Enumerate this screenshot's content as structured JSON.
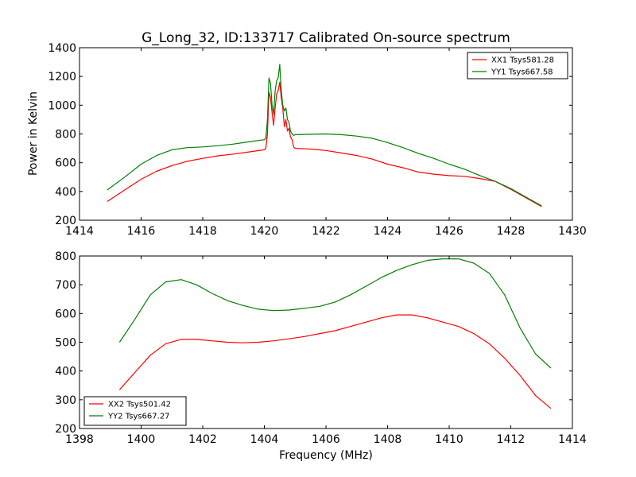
{
  "page": {
    "title": "G_Long_32, ID:133717 Calibrated On-source spectrum",
    "ylabel": "Power in Kelvin",
    "xlabel": "Frequency (MHz)"
  },
  "chart_data": [
    {
      "type": "line",
      "title": "G_Long_32, ID:133717 Calibrated On-source spectrum",
      "xlabel": "",
      "ylabel": "Power in Kelvin",
      "xlim": [
        1414,
        1430
      ],
      "ylim": [
        200,
        1400
      ],
      "xticks": [
        "1414",
        "1416",
        "1418",
        "1420",
        "1422",
        "1424",
        "1426",
        "1428",
        "1430"
      ],
      "yticks": [
        "200",
        "400",
        "600",
        "800",
        "1000",
        "1200",
        "1400"
      ],
      "grid": false,
      "legend_position": "top-right",
      "series": [
        {
          "name": "XX1 Tsys581.28",
          "color": "#ff0000",
          "x": [
            1414.9,
            1415.5,
            1416,
            1416.5,
            1417,
            1417.5,
            1418,
            1418.5,
            1419,
            1419.5,
            1420,
            1420.05,
            1420.1,
            1420.15,
            1420.2,
            1420.25,
            1420.3,
            1420.35,
            1420.4,
            1420.45,
            1420.5,
            1420.55,
            1420.6,
            1420.65,
            1420.7,
            1420.75,
            1420.8,
            1420.85,
            1420.9,
            1420.95,
            1421,
            1421.5,
            1422,
            1422.5,
            1423,
            1423.5,
            1424,
            1424.5,
            1425,
            1425.5,
            1426,
            1426.5,
            1427,
            1427.5,
            1428,
            1428.5,
            1429
          ],
          "y": [
            330,
            415,
            485,
            540,
            580,
            610,
            630,
            648,
            660,
            675,
            690,
            700,
            800,
            1090,
            1050,
            950,
            860,
            980,
            1080,
            1100,
            1160,
            1050,
            980,
            850,
            900,
            820,
            840,
            780,
            760,
            710,
            700,
            695,
            685,
            668,
            650,
            625,
            590,
            565,
            535,
            520,
            510,
            505,
            490,
            470,
            415,
            355,
            295
          ]
        },
        {
          "name": "YY1 Tsys667.58",
          "color": "#008000",
          "x": [
            1414.9,
            1415.5,
            1416,
            1416.5,
            1417,
            1417.5,
            1418,
            1418.5,
            1419,
            1419.5,
            1420,
            1420.05,
            1420.1,
            1420.15,
            1420.2,
            1420.25,
            1420.3,
            1420.35,
            1420.4,
            1420.45,
            1420.5,
            1420.55,
            1420.6,
            1420.65,
            1420.7,
            1420.75,
            1420.8,
            1420.85,
            1420.9,
            1420.95,
            1421,
            1421.5,
            1422,
            1422.5,
            1423,
            1423.5,
            1424,
            1424.5,
            1425,
            1425.5,
            1426,
            1426.5,
            1427,
            1427.5,
            1428,
            1428.5,
            1429
          ],
          "y": [
            410,
            505,
            590,
            650,
            690,
            705,
            710,
            718,
            730,
            745,
            760,
            770,
            900,
            1190,
            1150,
            1000,
            940,
            1100,
            1170,
            1190,
            1285,
            1100,
            1000,
            960,
            980,
            900,
            880,
            820,
            800,
            790,
            795,
            798,
            800,
            795,
            785,
            770,
            740,
            705,
            665,
            630,
            590,
            555,
            510,
            470,
            420,
            360,
            300
          ]
        }
      ]
    },
    {
      "type": "line",
      "title": "",
      "xlabel": "Frequency (MHz)",
      "ylabel": "",
      "xlim": [
        1398,
        1414
      ],
      "ylim": [
        200,
        800
      ],
      "xticks": [
        "1398",
        "1400",
        "1402",
        "1404",
        "1406",
        "1408",
        "1410",
        "1412",
        "1414"
      ],
      "yticks": [
        "200",
        "300",
        "400",
        "500",
        "600",
        "700",
        "800"
      ],
      "grid": false,
      "legend_position": "bottom-left",
      "series": [
        {
          "name": "XX2 Tsys501.42",
          "color": "#ff0000",
          "x": [
            1399.3,
            1399.8,
            1400.3,
            1400.8,
            1401.3,
            1401.8,
            1402.3,
            1402.8,
            1403.3,
            1403.8,
            1404.3,
            1404.8,
            1405.3,
            1405.8,
            1406.3,
            1406.8,
            1407.3,
            1407.8,
            1408.3,
            1408.8,
            1409.3,
            1409.8,
            1410.3,
            1410.8,
            1411.3,
            1411.8,
            1412.3,
            1412.8,
            1413.3
          ],
          "y": [
            335,
            395,
            455,
            495,
            510,
            510,
            505,
            500,
            498,
            500,
            505,
            512,
            520,
            530,
            540,
            555,
            570,
            585,
            595,
            595,
            585,
            570,
            555,
            530,
            495,
            445,
            385,
            315,
            270
          ]
        },
        {
          "name": "YY2 Tsys667.27",
          "color": "#008000",
          "x": [
            1399.3,
            1399.8,
            1400.3,
            1400.8,
            1401.3,
            1401.8,
            1402.3,
            1402.8,
            1403.3,
            1403.8,
            1404.3,
            1404.8,
            1405.3,
            1405.8,
            1406.3,
            1406.8,
            1407.3,
            1407.8,
            1408.3,
            1408.8,
            1409.3,
            1409.8,
            1410.3,
            1410.8,
            1411.3,
            1411.8,
            1412.3,
            1412.8,
            1413.3
          ],
          "y": [
            500,
            580,
            665,
            710,
            718,
            700,
            670,
            645,
            628,
            615,
            610,
            612,
            618,
            625,
            640,
            665,
            695,
            725,
            750,
            770,
            785,
            790,
            790,
            775,
            740,
            665,
            550,
            460,
            410
          ]
        }
      ]
    }
  ]
}
